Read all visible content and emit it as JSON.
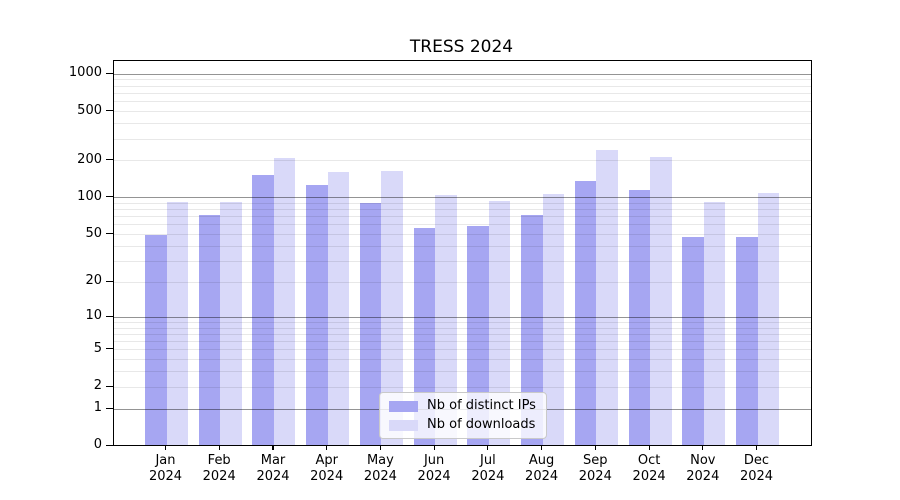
{
  "figure": {
    "title": "TRESS 2024",
    "background_color": "#ffffff"
  },
  "chart_data": {
    "type": "bar",
    "title": "TRESS 2024",
    "categories": [
      "Jan",
      "Feb",
      "Mar",
      "Apr",
      "May",
      "Jun",
      "Jul",
      "Aug",
      "Sep",
      "Oct",
      "Nov",
      "Dec"
    ],
    "year_label": "2024",
    "series": [
      {
        "name": "Nb of distinct IPs",
        "color": "#a6a6f2",
        "values": [
          48,
          70,
          150,
          124,
          89,
          55,
          57,
          71,
          134,
          112,
          47,
          47
        ]
      },
      {
        "name": "Nb of downloads",
        "color": "#d9d9f9",
        "values": [
          90,
          90,
          204,
          157,
          161,
          102,
          92,
          105,
          240,
          211,
          90,
          106
        ]
      }
    ],
    "yscale": "log1p",
    "ylim": [
      0,
      1100
    ],
    "yticks": [
      0,
      1,
      2,
      5,
      10,
      20,
      50,
      100,
      200,
      500,
      1000
    ],
    "ytick_labels": [
      "0",
      "1",
      "2",
      "5",
      "10",
      "20",
      "50",
      "100",
      "200",
      "500",
      "1000"
    ],
    "major_grid_values": [
      1,
      10,
      100,
      1000
    ],
    "grid": true,
    "legend_position": "lower center",
    "legend_entries": [
      "Nb of distinct IPs",
      "Nb of downloads"
    ]
  },
  "colors": {
    "bar_distinct_ips": "#a6a6f2",
    "bar_downloads": "#d9d9f9",
    "major_grid": "rgba(0,0,0,0.42)",
    "minor_grid": "rgba(0,0,0,0.09)",
    "axis": "#000000",
    "legend_border": "#c9c9c9"
  }
}
